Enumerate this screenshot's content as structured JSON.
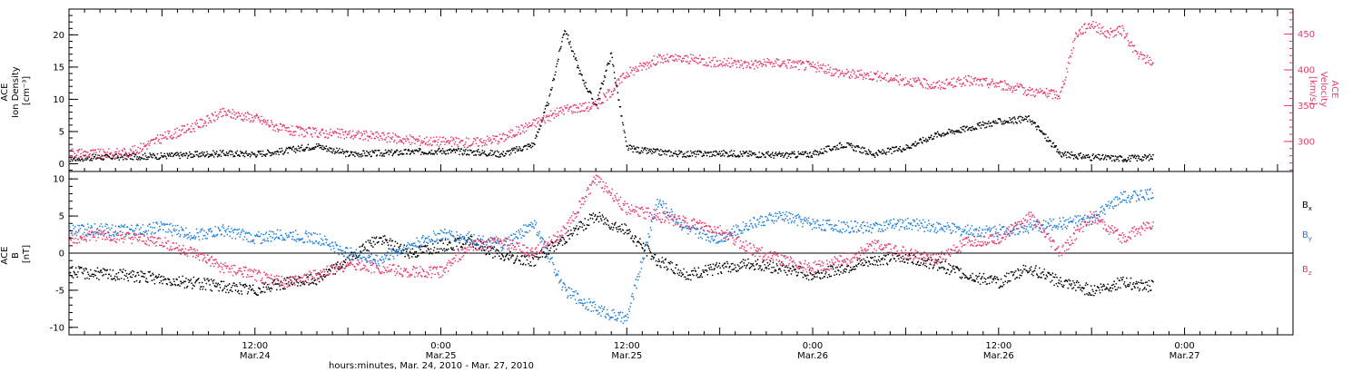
{
  "chart_data": [
    {
      "type": "scatter",
      "panel": "top",
      "ylabel_left": [
        "ACE",
        "Ion Density",
        "[cm⁻³]"
      ],
      "ylabel_right": [
        "ACE",
        "Velocity",
        "[km/s]"
      ],
      "yticks_left": [
        0,
        5,
        10,
        15,
        20
      ],
      "ylim_left": [
        -1.2,
        24
      ],
      "yticks_right": [
        300,
        350,
        400,
        450
      ],
      "ylim_right": [
        258,
        485
      ],
      "series": [
        {
          "name": "Ion Density",
          "axis": "left",
          "color": "#000000",
          "x": [
            0,
            2,
            4,
            6,
            8,
            10,
            12,
            14,
            16,
            18,
            20,
            22,
            24,
            26,
            28,
            30,
            31,
            32,
            33,
            34,
            35,
            36,
            37,
            38,
            39,
            40,
            42,
            44,
            46,
            48,
            50,
            52,
            54,
            56,
            58,
            60,
            62,
            64,
            66,
            68,
            70
          ],
          "y": [
            0.8,
            1.0,
            1.1,
            1.2,
            1.4,
            1.6,
            1.5,
            2.0,
            2.8,
            1.5,
            1.6,
            1.8,
            2.0,
            1.8,
            1.5,
            3.0,
            10.0,
            21.0,
            14.0,
            9.0,
            17.0,
            2.5,
            2.0,
            1.8,
            1.6,
            1.5,
            1.6,
            1.5,
            1.3,
            1.5,
            3.0,
            1.5,
            2.5,
            4.5,
            5.5,
            6.5,
            7.0,
            1.5,
            1.0,
            0.8,
            1.0
          ]
        },
        {
          "name": "Velocity",
          "axis": "right",
          "color": "#e8386a",
          "x": [
            0,
            2,
            4,
            6,
            8,
            10,
            12,
            14,
            16,
            18,
            20,
            22,
            24,
            26,
            28,
            30,
            32,
            34,
            35,
            36,
            38,
            40,
            42,
            44,
            46,
            48,
            50,
            52,
            54,
            56,
            58,
            60,
            62,
            64,
            65,
            66,
            67,
            68,
            69,
            70
          ],
          "y": [
            285,
            282,
            285,
            305,
            320,
            340,
            333,
            315,
            312,
            310,
            307,
            302,
            300,
            298,
            305,
            325,
            345,
            350,
            370,
            395,
            415,
            415,
            410,
            408,
            410,
            405,
            395,
            392,
            385,
            378,
            385,
            380,
            370,
            365,
            450,
            465,
            450,
            455,
            420,
            410
          ]
        }
      ]
    },
    {
      "type": "scatter",
      "panel": "bottom",
      "ylabel_left": [
        "ACE",
        "B",
        "[nT]"
      ],
      "yticks_left": [
        -10,
        -5,
        0,
        5,
        10
      ],
      "ylim_left": [
        -11,
        11
      ],
      "zero_line": true,
      "series": [
        {
          "name": "Bx",
          "color": "#000000",
          "x": [
            0,
            2,
            4,
            6,
            8,
            10,
            12,
            14,
            16,
            18,
            20,
            22,
            24,
            26,
            28,
            30,
            32,
            34,
            36,
            38,
            40,
            42,
            44,
            46,
            48,
            50,
            52,
            54,
            56,
            58,
            60,
            62,
            64,
            66,
            68,
            70
          ],
          "y": [
            -2.5,
            -2.8,
            -3.0,
            -3.5,
            -4.0,
            -4.5,
            -5.0,
            -4.0,
            -3.5,
            -1.0,
            2.0,
            0.0,
            1.0,
            1.5,
            -0.5,
            -1.0,
            2.0,
            5.0,
            3.0,
            -1.0,
            -3.0,
            -2.0,
            -1.5,
            -2.0,
            -3.0,
            -2.0,
            -1.0,
            -0.5,
            -1.5,
            -3.0,
            -4.0,
            -2.0,
            -4.0,
            -5.0,
            -4.0,
            -4.5
          ]
        },
        {
          "name": "By",
          "color": "#1a7fdc",
          "x": [
            0,
            2,
            4,
            6,
            8,
            10,
            12,
            14,
            16,
            18,
            20,
            22,
            24,
            26,
            28,
            30,
            32,
            34,
            36,
            38,
            40,
            42,
            44,
            46,
            48,
            50,
            52,
            54,
            56,
            58,
            60,
            62,
            64,
            66,
            68,
            70
          ],
          "y": [
            3.0,
            3.2,
            3.0,
            3.5,
            2.5,
            3.0,
            2.0,
            2.5,
            2.0,
            0.0,
            -1.0,
            1.0,
            2.5,
            2.0,
            1.0,
            4.0,
            -5.0,
            -7.5,
            -9.0,
            7.0,
            3.0,
            2.0,
            4.0,
            5.0,
            4.0,
            3.5,
            3.5,
            4.0,
            3.5,
            3.0,
            3.0,
            3.5,
            4.0,
            4.5,
            7.5,
            8.0
          ]
        },
        {
          "name": "Bz",
          "color": "#e8386a",
          "x": [
            0,
            2,
            4,
            6,
            8,
            10,
            12,
            14,
            16,
            18,
            20,
            22,
            24,
            26,
            28,
            30,
            32,
            34,
            36,
            38,
            40,
            42,
            44,
            46,
            48,
            50,
            52,
            54,
            56,
            58,
            60,
            62,
            64,
            66,
            68,
            70
          ],
          "y": [
            2.0,
            2.5,
            2.0,
            1.5,
            0.0,
            -2.0,
            -3.0,
            -4.0,
            -3.0,
            -1.5,
            -2.0,
            -2.5,
            -2.5,
            1.0,
            1.5,
            0.0,
            3.0,
            10.0,
            6.0,
            5.0,
            4.0,
            3.0,
            0.5,
            -1.0,
            -2.0,
            -1.0,
            1.0,
            0.0,
            -1.0,
            1.5,
            2.0,
            5.0,
            0.0,
            5.0,
            2.0,
            4.0
          ]
        }
      ]
    }
  ],
  "legend": [
    {
      "label": "B",
      "sub": "x",
      "color": "#000000"
    },
    {
      "label": "B",
      "sub": "y",
      "color": "#1a7fdc"
    },
    {
      "label": "B",
      "sub": "z",
      "color": "#e8386a"
    }
  ],
  "x_axis": {
    "labels": [
      {
        "time": "12:00",
        "date": "Mar.24",
        "x": 12
      },
      {
        "time": "0:00",
        "date": "Mar.25",
        "x": 24
      },
      {
        "time": "12:00",
        "date": "Mar.25",
        "x": 36
      },
      {
        "time": "0:00",
        "date": "Mar.26",
        "x": 48
      },
      {
        "time": "12:00",
        "date": "Mar.26",
        "x": 60
      },
      {
        "time": "0:00",
        "date": "Mar.27",
        "x": 72
      }
    ],
    "xlabel": "hours:minutes, Mar. 24, 2010 - Mar. 27, 2010"
  }
}
